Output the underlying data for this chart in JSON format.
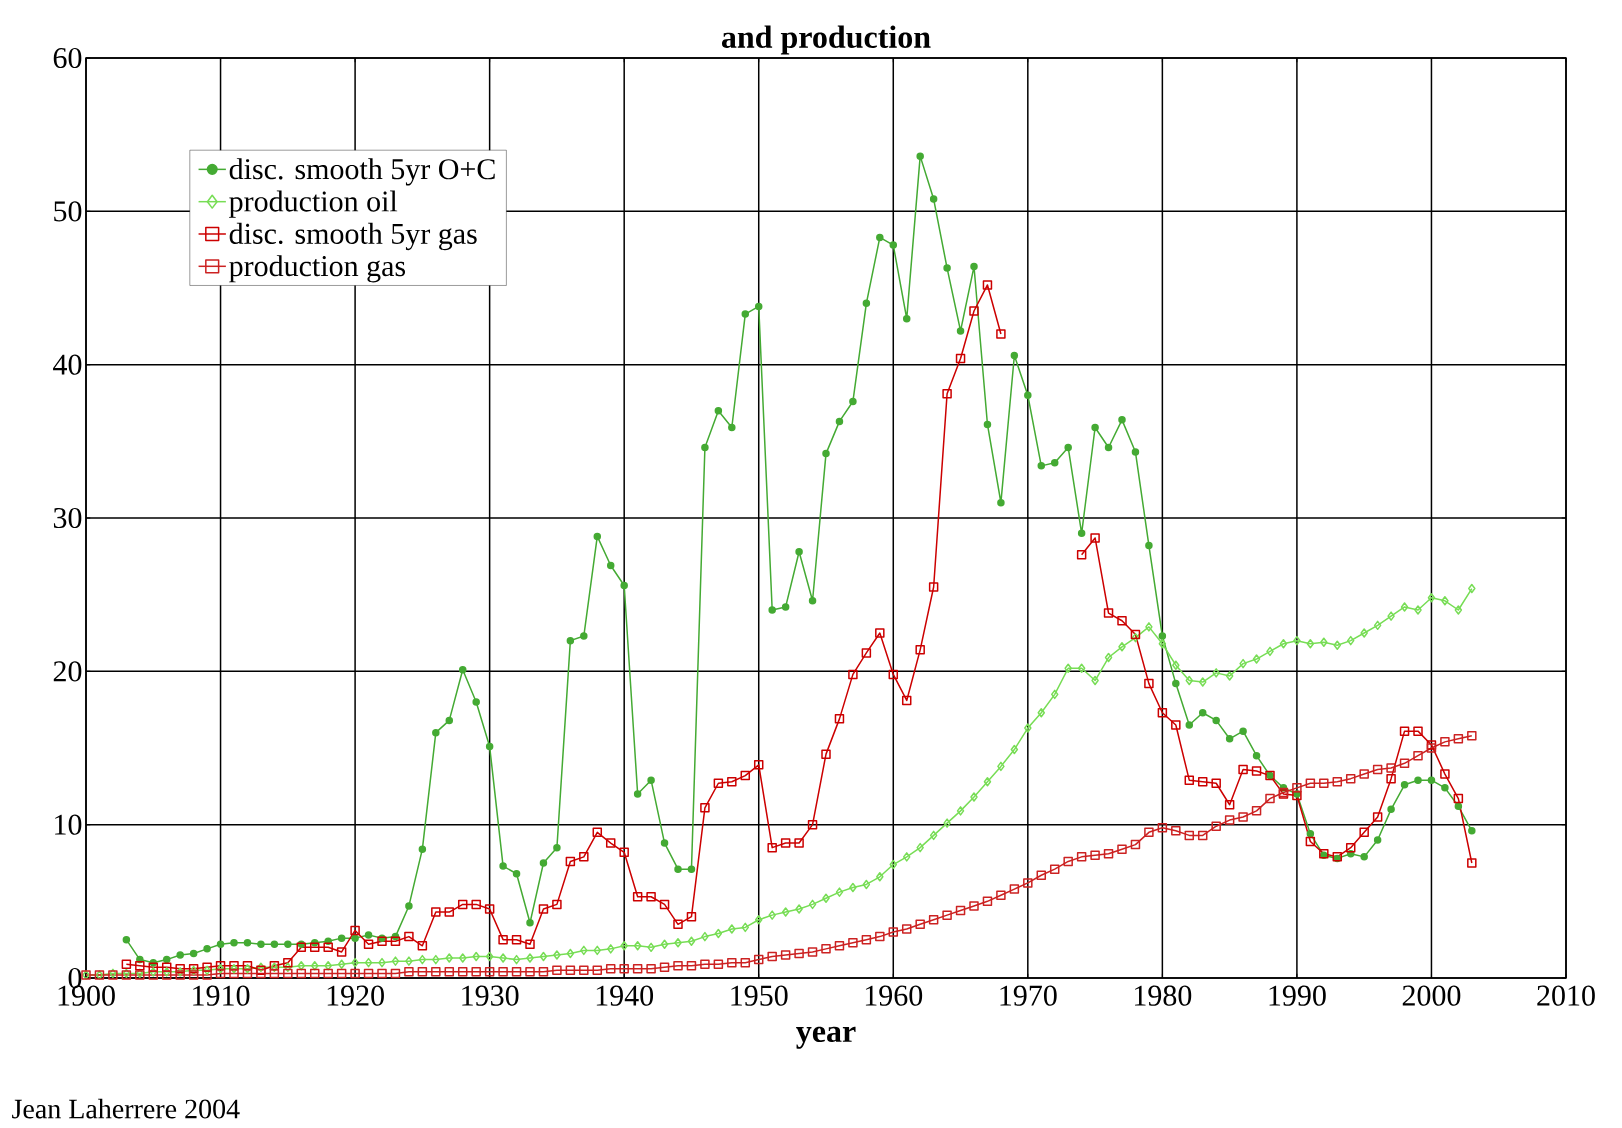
{
  "chart_data": {
    "type": "line",
    "title": "and production",
    "xlabel": "year",
    "annotations": [
      "Jean Laherrere 2004"
    ],
    "xlim": [
      1900,
      2010
    ],
    "ylim": [
      0,
      60
    ],
    "xticks": [
      1900,
      1910,
      1920,
      1930,
      1940,
      1950,
      1960,
      1970,
      1980,
      1990,
      2000,
      2010
    ],
    "yticks": [
      0,
      10,
      20,
      30,
      40,
      50,
      60
    ],
    "grid": true,
    "legend": "top left",
    "series": [
      {
        "name": "disc. smooth 5yr O+C",
        "color": "#44aa33",
        "marker": "circle",
        "x": [
          1903,
          1904,
          1905,
          1906,
          1907,
          1908,
          1909,
          1910,
          1911,
          1912,
          1913,
          1914,
          1915,
          1916,
          1917,
          1918,
          1919,
          1920,
          1921,
          1922,
          1923,
          1924,
          1925,
          1926,
          1927,
          1928,
          1929,
          1930,
          1931,
          1932,
          1933,
          1934,
          1935,
          1936,
          1937,
          1938,
          1939,
          1940,
          1941,
          1942,
          1943,
          1944,
          1945,
          1946,
          1947,
          1948,
          1949,
          1950,
          1951,
          1952,
          1953,
          1954,
          1955,
          1956,
          1957,
          1958,
          1959,
          1960,
          1961,
          1962,
          1963,
          1964,
          1965,
          1966,
          1967,
          1968,
          1969,
          1970,
          1971,
          1972,
          1973,
          1974,
          1975,
          1976,
          1977,
          1978,
          1979,
          1980,
          1981,
          1982,
          1983,
          1984,
          1985,
          1986,
          1987,
          1988,
          1989,
          1990,
          1991,
          1992,
          1993,
          1994,
          1995,
          1996,
          1997,
          1998,
          1999,
          2000,
          2001,
          2002,
          2003
        ],
        "values": [
          2.5,
          1.2,
          1.0,
          1.2,
          1.5,
          1.6,
          1.9,
          2.2,
          2.3,
          2.3,
          2.2,
          2.2,
          2.2,
          2.2,
          2.3,
          2.4,
          2.6,
          2.6,
          2.8,
          2.6,
          2.7,
          4.7,
          8.4,
          16.0,
          16.8,
          20.1,
          18.0,
          15.1,
          7.3,
          6.8,
          3.6,
          7.5,
          8.5,
          22.0,
          22.3,
          28.8,
          26.9,
          25.6,
          12.0,
          12.9,
          8.8,
          7.1,
          7.1,
          34.6,
          37.0,
          35.9,
          43.3,
          43.8,
          24.0,
          24.2,
          27.8,
          24.6,
          34.2,
          36.3,
          37.6,
          44.0,
          48.3,
          47.8,
          43.0,
          53.6,
          50.8,
          46.3,
          42.2,
          46.4,
          36.1,
          31.0,
          40.6,
          38.0,
          33.4,
          33.6,
          34.6,
          29.0,
          35.9,
          34.6,
          36.4,
          34.3,
          28.2,
          22.3,
          19.2,
          16.5,
          17.3,
          16.8,
          15.6,
          16.1,
          14.5,
          13.2,
          12.4,
          12.0,
          9.4,
          8.0,
          7.8,
          8.1,
          7.9,
          9.0,
          11.0,
          12.6,
          12.9,
          12.9,
          12.4,
          11.2,
          9.6
        ]
      },
      {
        "name": "production oil",
        "color": "#77dd55",
        "marker": "diamond",
        "x": [
          1900,
          1901,
          1902,
          1903,
          1904,
          1905,
          1906,
          1907,
          1908,
          1909,
          1910,
          1911,
          1912,
          1913,
          1914,
          1915,
          1916,
          1917,
          1918,
          1919,
          1920,
          1921,
          1922,
          1923,
          1924,
          1925,
          1926,
          1927,
          1928,
          1929,
          1930,
          1931,
          1932,
          1933,
          1934,
          1935,
          1936,
          1937,
          1938,
          1939,
          1940,
          1941,
          1942,
          1943,
          1944,
          1945,
          1946,
          1947,
          1948,
          1949,
          1950,
          1951,
          1952,
          1953,
          1954,
          1955,
          1956,
          1957,
          1958,
          1959,
          1960,
          1961,
          1962,
          1963,
          1964,
          1965,
          1966,
          1967,
          1968,
          1969,
          1970,
          1971,
          1972,
          1973,
          1974,
          1975,
          1976,
          1977,
          1978,
          1979,
          1980,
          1981,
          1982,
          1983,
          1984,
          1985,
          1986,
          1987,
          1988,
          1989,
          1990,
          1991,
          1992,
          1993,
          1994,
          1995,
          1996,
          1997,
          1998,
          1999,
          2000,
          2001,
          2002,
          2003
        ],
        "values": [
          0.2,
          0.2,
          0.3,
          0.3,
          0.3,
          0.4,
          0.4,
          0.4,
          0.5,
          0.5,
          0.6,
          0.6,
          0.6,
          0.7,
          0.7,
          0.7,
          0.8,
          0.8,
          0.8,
          0.9,
          1.0,
          1.0,
          1.0,
          1.1,
          1.1,
          1.2,
          1.2,
          1.3,
          1.3,
          1.4,
          1.4,
          1.3,
          1.2,
          1.3,
          1.4,
          1.5,
          1.6,
          1.8,
          1.8,
          1.9,
          2.1,
          2.1,
          2.0,
          2.2,
          2.3,
          2.4,
          2.7,
          2.9,
          3.2,
          3.3,
          3.8,
          4.1,
          4.3,
          4.5,
          4.8,
          5.2,
          5.6,
          5.9,
          6.1,
          6.6,
          7.4,
          7.9,
          8.5,
          9.3,
          10.1,
          10.9,
          11.8,
          12.8,
          13.8,
          14.9,
          16.3,
          17.3,
          18.5,
          20.2,
          20.2,
          19.4,
          20.9,
          21.6,
          22.2,
          22.9,
          21.8,
          20.4,
          19.4,
          19.3,
          19.9,
          19.7,
          20.5,
          20.8,
          21.3,
          21.8,
          22.0,
          21.8,
          21.9,
          21.7,
          22.0,
          22.5,
          23.0,
          23.6,
          24.2,
          24.0,
          24.8,
          24.6,
          24.0,
          25.4
        ]
      },
      {
        "name": "disc. smooth 5yr gas",
        "color": "#cc0000",
        "marker": "square",
        "x": [
          1903,
          1904,
          1905,
          1906,
          1907,
          1908,
          1909,
          1910,
          1911,
          1912,
          1913,
          1914,
          1915,
          1916,
          1917,
          1918,
          1919,
          1920,
          1921,
          1922,
          1923,
          1924,
          1925,
          1926,
          1927,
          1928,
          1929,
          1930,
          1931,
          1932,
          1933,
          1934,
          1935,
          1936,
          1937,
          1938,
          1939,
          1940,
          1941,
          1942,
          1943,
          1944,
          1945,
          1946,
          1947,
          1948,
          1949,
          1950,
          1951,
          1952,
          1953,
          1954,
          1955,
          1956,
          1957,
          1958,
          1959,
          1960,
          1961,
          1962,
          1963,
          1964,
          1965,
          1966,
          1967,
          1968,
          1969,
          1970,
          1971,
          1972,
          1973,
          1974,
          1975,
          1976,
          1977,
          1978,
          1979,
          1980,
          1981,
          1982,
          1983,
          1984,
          1985,
          1986,
          1987,
          1988,
          1989,
          1990,
          1991,
          1992,
          1993,
          1994,
          1995,
          1996,
          1997,
          1998,
          1999,
          2000,
          2001,
          2002,
          2003
        ],
        "values": [
          0.9,
          0.8,
          0.7,
          0.7,
          0.6,
          0.6,
          0.7,
          0.8,
          0.8,
          0.8,
          0.5,
          0.8,
          1.0,
          2.0,
          2.0,
          2.0,
          1.7,
          3.1,
          2.2,
          2.4,
          2.4,
          2.7,
          2.1,
          4.3,
          4.3,
          4.8,
          4.8,
          4.5,
          2.5,
          2.5,
          2.2,
          4.5,
          4.8,
          7.6,
          7.9,
          9.5,
          8.8,
          8.2,
          5.3,
          5.3,
          4.8,
          3.5,
          4.0,
          11.1,
          12.7,
          12.8,
          13.2,
          13.9,
          8.5,
          8.8,
          8.8,
          10.0,
          14.6,
          16.9,
          19.8,
          21.2,
          22.5,
          19.8,
          18.1,
          21.4,
          25.5,
          38.1,
          40.4,
          43.5,
          45.2,
          42.0,
          null,
          null,
          null,
          null,
          null,
          27.6,
          28.7,
          23.8,
          23.3,
          22.4,
          19.2,
          17.3,
          16.5,
          12.9,
          12.8,
          12.7,
          11.3,
          13.6,
          13.5,
          13.2,
          12.0,
          11.9,
          8.9,
          8.1,
          7.9,
          8.5,
          9.5,
          10.5,
          13.0,
          16.1,
          16.1,
          15.2,
          13.3,
          11.7,
          7.5
        ]
      },
      {
        "name": "production gas",
        "color": "#cc2222",
        "marker": "square",
        "x": [
          1900,
          1901,
          1902,
          1903,
          1904,
          1905,
          1906,
          1907,
          1908,
          1909,
          1910,
          1911,
          1912,
          1913,
          1914,
          1915,
          1916,
          1917,
          1918,
          1919,
          1920,
          1921,
          1922,
          1923,
          1924,
          1925,
          1926,
          1927,
          1928,
          1929,
          1930,
          1931,
          1932,
          1933,
          1934,
          1935,
          1936,
          1937,
          1938,
          1939,
          1940,
          1941,
          1942,
          1943,
          1944,
          1945,
          1946,
          1947,
          1948,
          1949,
          1950,
          1951,
          1952,
          1953,
          1954,
          1955,
          1956,
          1957,
          1958,
          1959,
          1960,
          1961,
          1962,
          1963,
          1964,
          1965,
          1966,
          1967,
          1968,
          1969,
          1970,
          1971,
          1972,
          1973,
          1974,
          1975,
          1976,
          1977,
          1978,
          1979,
          1980,
          1981,
          1982,
          1983,
          1984,
          1985,
          1986,
          1987,
          1988,
          1989,
          1990,
          1991,
          1992,
          1993,
          1994,
          1995,
          1996,
          1997,
          1998,
          1999,
          2000,
          2001,
          2002,
          2003
        ],
        "values": [
          0.2,
          0.2,
          0.2,
          0.2,
          0.2,
          0.2,
          0.2,
          0.2,
          0.2,
          0.2,
          0.3,
          0.3,
          0.3,
          0.3,
          0.3,
          0.3,
          0.3,
          0.3,
          0.3,
          0.3,
          0.3,
          0.3,
          0.3,
          0.3,
          0.4,
          0.4,
          0.4,
          0.4,
          0.4,
          0.4,
          0.4,
          0.4,
          0.4,
          0.4,
          0.4,
          0.5,
          0.5,
          0.5,
          0.5,
          0.6,
          0.6,
          0.6,
          0.6,
          0.7,
          0.8,
          0.8,
          0.9,
          0.9,
          1.0,
          1.0,
          1.2,
          1.4,
          1.5,
          1.6,
          1.7,
          1.9,
          2.1,
          2.3,
          2.5,
          2.7,
          3.0,
          3.2,
          3.5,
          3.8,
          4.1,
          4.4,
          4.7,
          5.0,
          5.4,
          5.8,
          6.2,
          6.7,
          7.1,
          7.6,
          7.9,
          8.0,
          8.1,
          8.4,
          8.7,
          9.5,
          9.8,
          9.6,
          9.3,
          9.3,
          9.9,
          10.3,
          10.5,
          10.9,
          11.7,
          12.1,
          12.4,
          12.7,
          12.7,
          12.8,
          13.0,
          13.3,
          13.6,
          13.7,
          14.0,
          14.5,
          15.0,
          15.4,
          15.6,
          15.8
        ]
      }
    ]
  }
}
